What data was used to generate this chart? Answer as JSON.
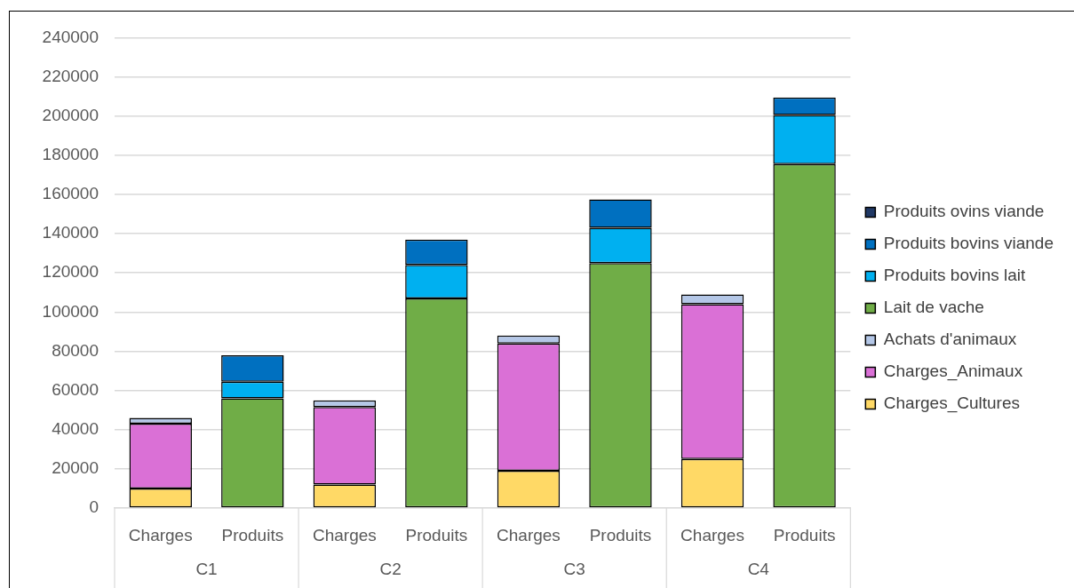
{
  "chart_data": {
    "type": "bar",
    "stacked": true,
    "categories": [
      "Charges",
      "Produits",
      "Charges",
      "Produits",
      "Charges",
      "Produits",
      "Charges",
      "Produits"
    ],
    "annotations": [
      "C1",
      "C2",
      "C3",
      "C4"
    ],
    "series": [
      {
        "name": "Charges_Cultures",
        "color": "#ffd966",
        "values": [
          10000,
          null,
          12000,
          null,
          19000,
          null,
          25000,
          null
        ]
      },
      {
        "name": "Charges_Animaux",
        "color": "#da70d6",
        "values": [
          33000,
          null,
          39500,
          null,
          65000,
          null,
          79000,
          null
        ]
      },
      {
        "name": "Achats d'animaux",
        "color": "#b4c7e7",
        "values": [
          3000,
          null,
          3500,
          null,
          4000,
          null,
          5000,
          null
        ]
      },
      {
        "name": "Lait de vache",
        "color": "#70ad47",
        "values": [
          null,
          56000,
          null,
          107000,
          null,
          125000,
          null,
          175500
        ]
      },
      {
        "name": "Produits bovins lait",
        "color": "#00b0f0",
        "values": [
          null,
          8500,
          null,
          17000,
          null,
          18000,
          null,
          25000
        ]
      },
      {
        "name": "Produits bovins viande",
        "color": "#0070c0",
        "values": [
          null,
          13500,
          null,
          13000,
          null,
          14500,
          null,
          9000
        ]
      },
      {
        "name": "Produits ovins viande",
        "color": "#203864",
        "values": [
          null,
          0,
          null,
          0,
          null,
          0,
          null,
          0
        ]
      }
    ],
    "ylim": [
      0,
      240000
    ],
    "yticks": [
      0,
      20000,
      40000,
      60000,
      80000,
      100000,
      120000,
      140000,
      160000,
      180000,
      200000,
      220000,
      240000
    ],
    "grid": "y",
    "legend": "right"
  }
}
